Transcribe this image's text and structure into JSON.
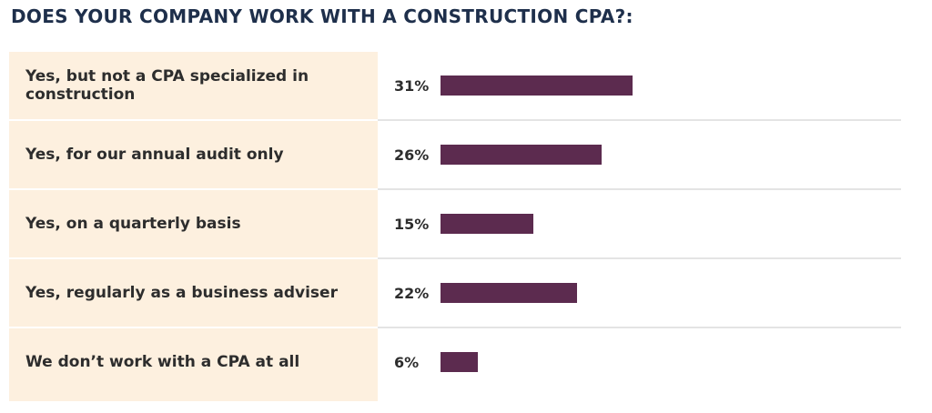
{
  "title": "DOES YOUR COMPANY WORK WITH A CONSTRUCTION CPA?:",
  "colors": {
    "bar": "#5c2b4f",
    "label_panel": "#fdf0df",
    "title": "#1e2f4b"
  },
  "chart_data": {
    "type": "bar",
    "orientation": "horizontal",
    "title": "DOES YOUR COMPANY WORK WITH A CONSTRUCTION CPA?:",
    "categories": [
      "Yes, but not a CPA specialized in construction",
      "Yes, for our annual audit only",
      "Yes, on a quarterly basis",
      "Yes, regularly as a business adviser",
      "We don’t work with a CPA at all"
    ],
    "values": [
      31,
      26,
      15,
      22,
      6
    ],
    "value_labels": [
      "31%",
      "26%",
      "15%",
      "22%",
      "6%"
    ],
    "unit": "%",
    "xlim": [
      0,
      100
    ],
    "grid": false,
    "legend": "none"
  }
}
